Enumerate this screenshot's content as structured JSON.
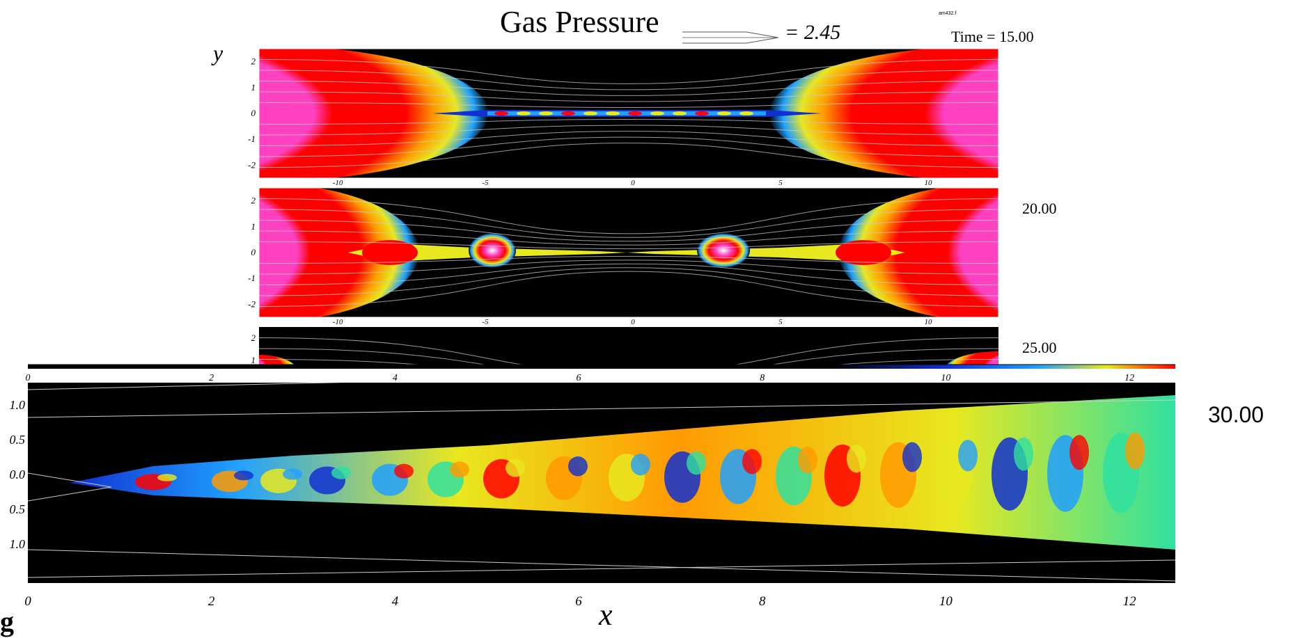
{
  "chart_data": [
    {
      "type": "heatmap",
      "title": "Gas Pressure",
      "vector_scale": "= 2.45",
      "file_tag": "am432.f",
      "time_prefix": "Time = ",
      "time": "15.00",
      "ylabel": "y",
      "y_ticks": [
        "2",
        "1",
        "0",
        "-1",
        "-2"
      ],
      "x_ticks": [
        "-10",
        "-5",
        "0",
        "5",
        "10"
      ],
      "colors": [
        "#000000",
        "#1030d0",
        "#20a0ff",
        "#30e0a0",
        "#e8e820",
        "#ff9a00",
        "#ff0000",
        "#ff40c0",
        "#d8d8d8"
      ]
    },
    {
      "type": "heatmap",
      "time": "20.00",
      "y_ticks": [
        "2",
        "1",
        "0",
        "-1",
        "-2"
      ],
      "x_ticks": [
        "-10",
        "-5",
        "0",
        "5",
        "10"
      ]
    },
    {
      "type": "heatmap",
      "time": "25.00",
      "y_ticks": [
        "2",
        "1"
      ]
    },
    {
      "type": "heatmap",
      "time": "30.00",
      "xlabel": "x",
      "x_ticks": [
        "0",
        "2",
        "4",
        "6",
        "8",
        "10",
        "12"
      ],
      "x_ticks_top": [
        "0",
        "2",
        "4",
        "6",
        "8",
        "10",
        "12"
      ],
      "y_ticks": [
        "1.0",
        "0.5",
        "0.0",
        "0.5",
        "1.0"
      ],
      "xlim": [
        0,
        12.5
      ],
      "ylim": [
        -1.2,
        1.2
      ]
    }
  ],
  "figure_mark": "g"
}
